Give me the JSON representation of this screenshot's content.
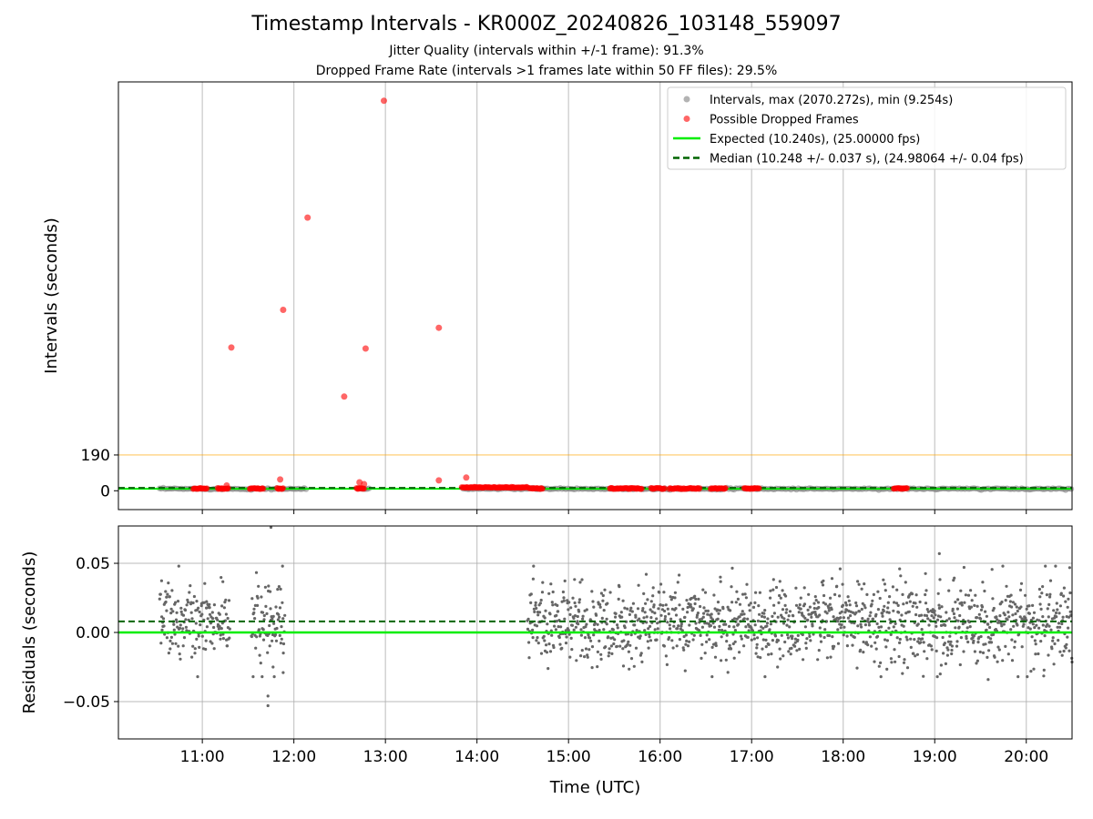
{
  "figure": {
    "title": "Timestamp Intervals - KR000Z_20240826_103148_559097",
    "subtitle_jitter": "Jitter Quality (intervals within +/-1 frame): 91.3%",
    "subtitle_dropped": "Dropped Frame Rate (intervals >1 frames late within 50 FF files): 29.5%"
  },
  "colors": {
    "intervals": "#808080",
    "dropped": "#ff0000",
    "expected": "#00ee00",
    "median": "#006400",
    "threshold": "#ffa500",
    "residuals": "#666666",
    "grid": "#b0b0b0"
  },
  "chart_data": [
    {
      "type": "scatter",
      "panel": "top",
      "xlabel": "",
      "ylabel": "Intervals (seconds)",
      "yticks": [
        0,
        190
      ],
      "ylim": [
        -100,
        2170
      ],
      "xlim": [
        "10:05",
        "20:30"
      ],
      "grid": "vertical",
      "legend_position": "top-right",
      "legend": [
        {
          "label": "Intervals, max (2070.272s), min (9.254s)",
          "marker": "circle",
          "color": "#808080"
        },
        {
          "label": "Possible Dropped Frames",
          "marker": "circle",
          "color": "#ff0000"
        },
        {
          "label": "Expected (10.240s), (25.00000 fps)",
          "marker": "line",
          "color": "#00ee00"
        },
        {
          "label": "Median (10.248 +/- 0.037 s), (24.98064 +/- 0.04 fps)",
          "marker": "dashed-line",
          "color": "#006400"
        }
      ],
      "expected_value": 10.24,
      "median_value": 10.248,
      "threshold_value": 190,
      "interval_segments": [
        {
          "start": "10:32",
          "end": "12:09"
        },
        {
          "start": "12:42",
          "end": "12:50"
        },
        {
          "start": "13:51",
          "end": "20:30"
        }
      ],
      "dropped_outliers": [
        {
          "x": "11:19",
          "y": 760
        },
        {
          "x": "11:53",
          "y": 960
        },
        {
          "x": "12:09",
          "y": 1450
        },
        {
          "x": "12:33",
          "y": 500
        },
        {
          "x": "12:47",
          "y": 755
        },
        {
          "x": "12:59",
          "y": 2070
        },
        {
          "x": "13:35",
          "y": 865
        },
        {
          "x": "11:16",
          "y": 28
        },
        {
          "x": "11:51",
          "y": 60
        },
        {
          "x": "12:43",
          "y": 45
        },
        {
          "x": "12:46",
          "y": 35
        },
        {
          "x": "13:35",
          "y": 55
        },
        {
          "x": "13:53",
          "y": 70
        }
      ],
      "dropped_clusters": [
        {
          "start": "10:54",
          "end": "11:03",
          "y": 12
        },
        {
          "start": "11:10",
          "end": "11:17",
          "y": 12
        },
        {
          "start": "11:31",
          "end": "11:40",
          "y": 12
        },
        {
          "start": "11:49",
          "end": "11:53",
          "y": 12
        },
        {
          "start": "12:41",
          "end": "12:46",
          "y": 12
        },
        {
          "start": "13:50",
          "end": "14:33",
          "y": 18
        },
        {
          "start": "14:34",
          "end": "14:43",
          "y": 12
        },
        {
          "start": "15:27",
          "end": "15:48",
          "y": 12
        },
        {
          "start": "15:54",
          "end": "16:03",
          "y": 12
        },
        {
          "start": "16:06",
          "end": "16:26",
          "y": 12
        },
        {
          "start": "16:33",
          "end": "16:43",
          "y": 12
        },
        {
          "start": "16:55",
          "end": "17:05",
          "y": 12
        },
        {
          "start": "18:33",
          "end": "18:42",
          "y": 12
        }
      ]
    },
    {
      "type": "scatter",
      "panel": "bottom",
      "xlabel": "Time (UTC)",
      "ylabel": "Residuals (seconds)",
      "xticks": [
        "11:00",
        "12:00",
        "13:00",
        "14:00",
        "15:00",
        "16:00",
        "17:00",
        "18:00",
        "19:00",
        "20:00"
      ],
      "yticks": [
        "0.05",
        "0.00",
        "−0.05"
      ],
      "ylim": [
        -0.077,
        0.077
      ],
      "grid": "both",
      "expected_residual": 0.0,
      "median_residual": 0.008,
      "residual_segments": [
        {
          "start": "10:32",
          "end": "11:18",
          "mean": 0.008,
          "spread": 0.013
        },
        {
          "start": "11:32",
          "end": "11:54",
          "mean": 0.008,
          "spread": 0.016
        },
        {
          "start": "14:33",
          "end": "20:30",
          "mean": 0.007,
          "spread": 0.015
        }
      ],
      "residual_extremes": [
        {
          "x": "11:45",
          "y": 0.076
        },
        {
          "x": "11:43",
          "y": -0.046
        },
        {
          "x": "11:43",
          "y": -0.053
        },
        {
          "x": "11:53",
          "y": -0.029
        },
        {
          "x": "19:03",
          "y": 0.057
        },
        {
          "x": "18:37",
          "y": 0.046
        },
        {
          "x": "17:58",
          "y": 0.046
        },
        {
          "x": "19:35",
          "y": -0.034
        }
      ]
    }
  ]
}
